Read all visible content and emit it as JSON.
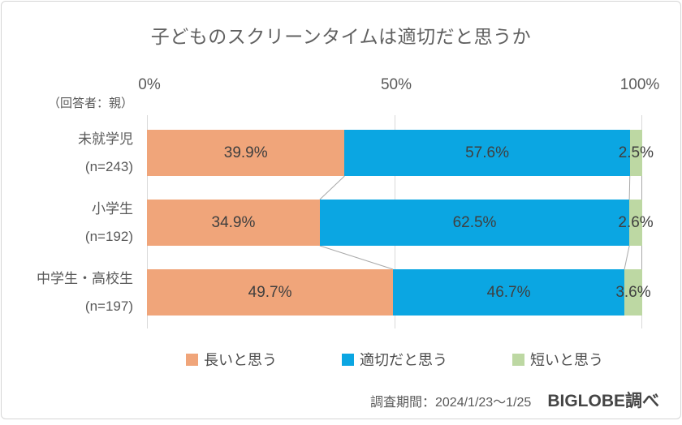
{
  "chart_data": {
    "type": "bar",
    "stacked": true,
    "orientation": "horizontal",
    "title": "子どものスクリーンタイムは適切だと思うか",
    "respondent_note": "（回答者：親）",
    "categories": [
      {
        "label": "未就学児",
        "n": "(n=243)"
      },
      {
        "label": "小学生",
        "n": "(n=192)"
      },
      {
        "label": "中学生・高校生",
        "n": "(n=197)"
      }
    ],
    "series": [
      {
        "name": "長いと思う",
        "color": "#F0A57A",
        "values": [
          39.9,
          34.9,
          49.7
        ]
      },
      {
        "name": "適切だと思う",
        "color": "#0BA6E2",
        "values": [
          57.6,
          62.5,
          46.7
        ]
      },
      {
        "name": "短いと思う",
        "color": "#BDD8A3",
        "values": [
          2.5,
          2.6,
          3.6
        ]
      }
    ],
    "value_suffix": "%",
    "axis": {
      "ticks": [
        "0%",
        "50%",
        "100%"
      ],
      "range": [
        0,
        100
      ],
      "grid": true
    },
    "legend_position": "bottom",
    "footer": {
      "period": "調査期間：2024/1/23～1/25",
      "source": "BIGLOBE調べ"
    },
    "colors": {
      "gridline": "#d9d9d9",
      "connector": "#a9a9a9",
      "value_label": "#3f3f3f"
    }
  }
}
